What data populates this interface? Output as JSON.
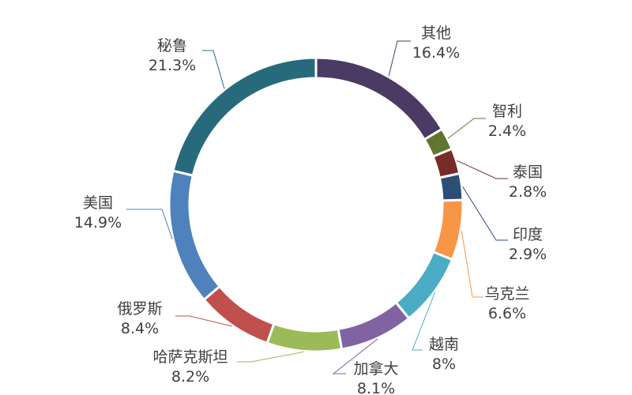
{
  "chart_data": {
    "type": "pie",
    "title": "",
    "donut": true,
    "legend": "none",
    "slices": [
      {
        "label": "其他",
        "value": 16.4,
        "value_label": "16.4%",
        "color": "#4B3A63"
      },
      {
        "label": "智利",
        "value": 2.4,
        "value_label": "2.4%",
        "color": "#5F7530"
      },
      {
        "label": "泰国",
        "value": 2.8,
        "value_label": "2.8%",
        "color": "#772C2A"
      },
      {
        "label": "印度",
        "value": 2.9,
        "value_label": "2.9%",
        "color": "#2C4D75"
      },
      {
        "label": "乌克兰",
        "value": 6.6,
        "value_label": "6.6%",
        "color": "#F79646"
      },
      {
        "label": "越南",
        "value": 8.0,
        "value_label": "8%",
        "color": "#4BACC6"
      },
      {
        "label": "加拿大",
        "value": 8.1,
        "value_label": "8.1%",
        "color": "#8064A2"
      },
      {
        "label": "哈萨克斯坦",
        "value": 8.2,
        "value_label": "8.2%",
        "color": "#9BBB59"
      },
      {
        "label": "俄罗斯",
        "value": 8.4,
        "value_label": "8.4%",
        "color": "#C0504D"
      },
      {
        "label": "美国",
        "value": 14.9,
        "value_label": "14.9%",
        "color": "#4F81BD"
      },
      {
        "label": "秘鲁",
        "value": 21.3,
        "value_label": "21.3%",
        "color": "#276A7C"
      }
    ]
  }
}
